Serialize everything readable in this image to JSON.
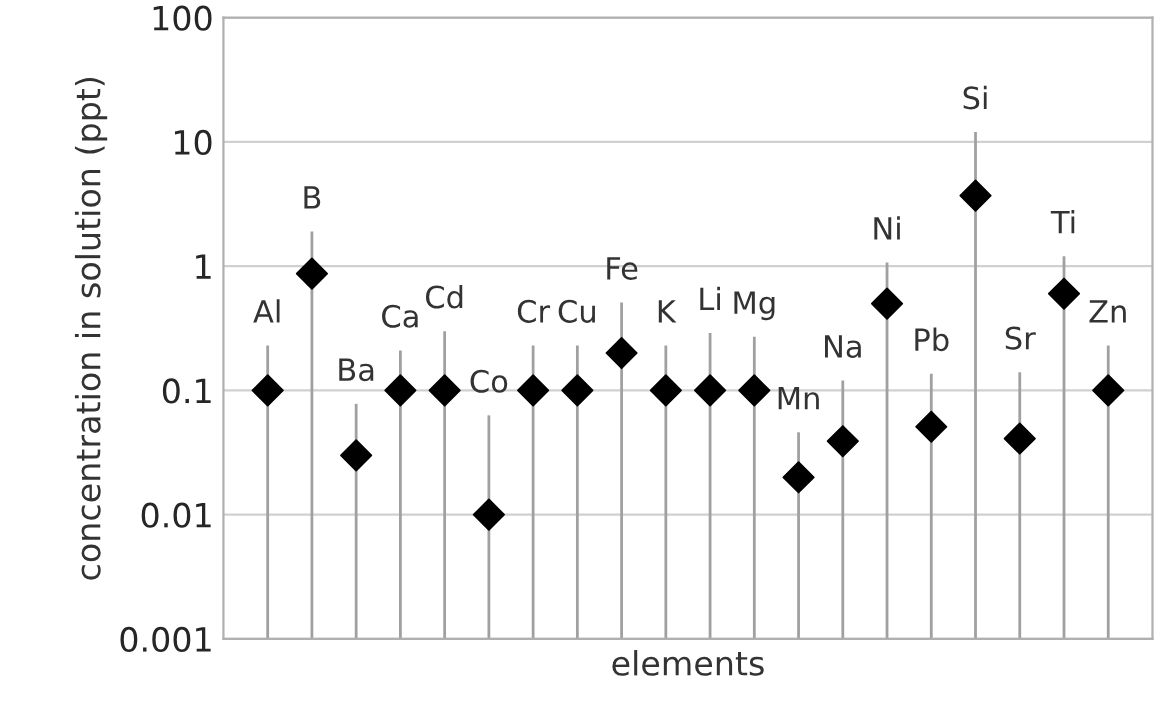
{
  "chart_data": {
    "type": "scatter",
    "xlabel": "elements",
    "ylabel": "concentration in solution (ppt)",
    "categories": [
      "Al",
      "B",
      "Ba",
      "Ca",
      "Cd",
      "Co",
      "Cr",
      "Cu",
      "Fe",
      "K",
      "Li",
      "Mg",
      "Mn",
      "Na",
      "Ni",
      "Pb",
      "Si",
      "Sr",
      "Ti",
      "Zn"
    ],
    "series": [
      {
        "color": "#000000",
        "values": [
          0.1,
          0.87,
          0.03,
          0.1,
          0.1,
          0.01,
          0.1,
          0.1,
          0.2,
          0.1,
          0.1,
          0.1,
          0.02,
          0.039,
          0.5,
          0.051,
          3.7,
          0.041,
          0.6,
          0.1
        ],
        "errors": [
          [
            0.001,
            0.23
          ],
          [
            0.001,
            1.9
          ],
          [
            0.001,
            0.078
          ],
          [
            0.001,
            0.21
          ],
          [
            0.001,
            0.3
          ],
          [
            0.001,
            0.063
          ],
          [
            0.001,
            0.23
          ],
          [
            0.001,
            0.23
          ],
          [
            0.001,
            0.51
          ],
          [
            0.001,
            0.23
          ],
          [
            0.001,
            0.29
          ],
          [
            0.001,
            0.27
          ],
          [
            0.001,
            0.046
          ],
          [
            0.001,
            0.12
          ],
          [
            0.001,
            1.07
          ],
          [
            0.001,
            0.136
          ],
          [
            0.001,
            12
          ],
          [
            0.001,
            0.14
          ],
          [
            0.001,
            1.2
          ],
          [
            0.001,
            0.23
          ]
        ]
      }
    ],
    "log": "y",
    "ylim": [
      0.001,
      100
    ],
    "yticks": [
      0.001,
      0.01,
      0.1,
      1,
      10,
      100
    ],
    "grid": "y",
    "legend": false,
    "marker": "diamond",
    "tick_labels": "y"
  }
}
